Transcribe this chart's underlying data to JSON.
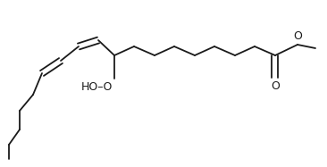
{
  "bg": "#ffffff",
  "bc": "#1a1a1a",
  "lw": 1.3,
  "fs": 9.0,
  "fig_w": 3.66,
  "fig_h": 1.87,
  "dpi": 100,
  "xlim": [
    0,
    366
  ],
  "ylim": [
    0,
    187
  ],
  "label_O_carbonyl": "O",
  "label_O_ester": "O",
  "label_HOO": "HO"
}
